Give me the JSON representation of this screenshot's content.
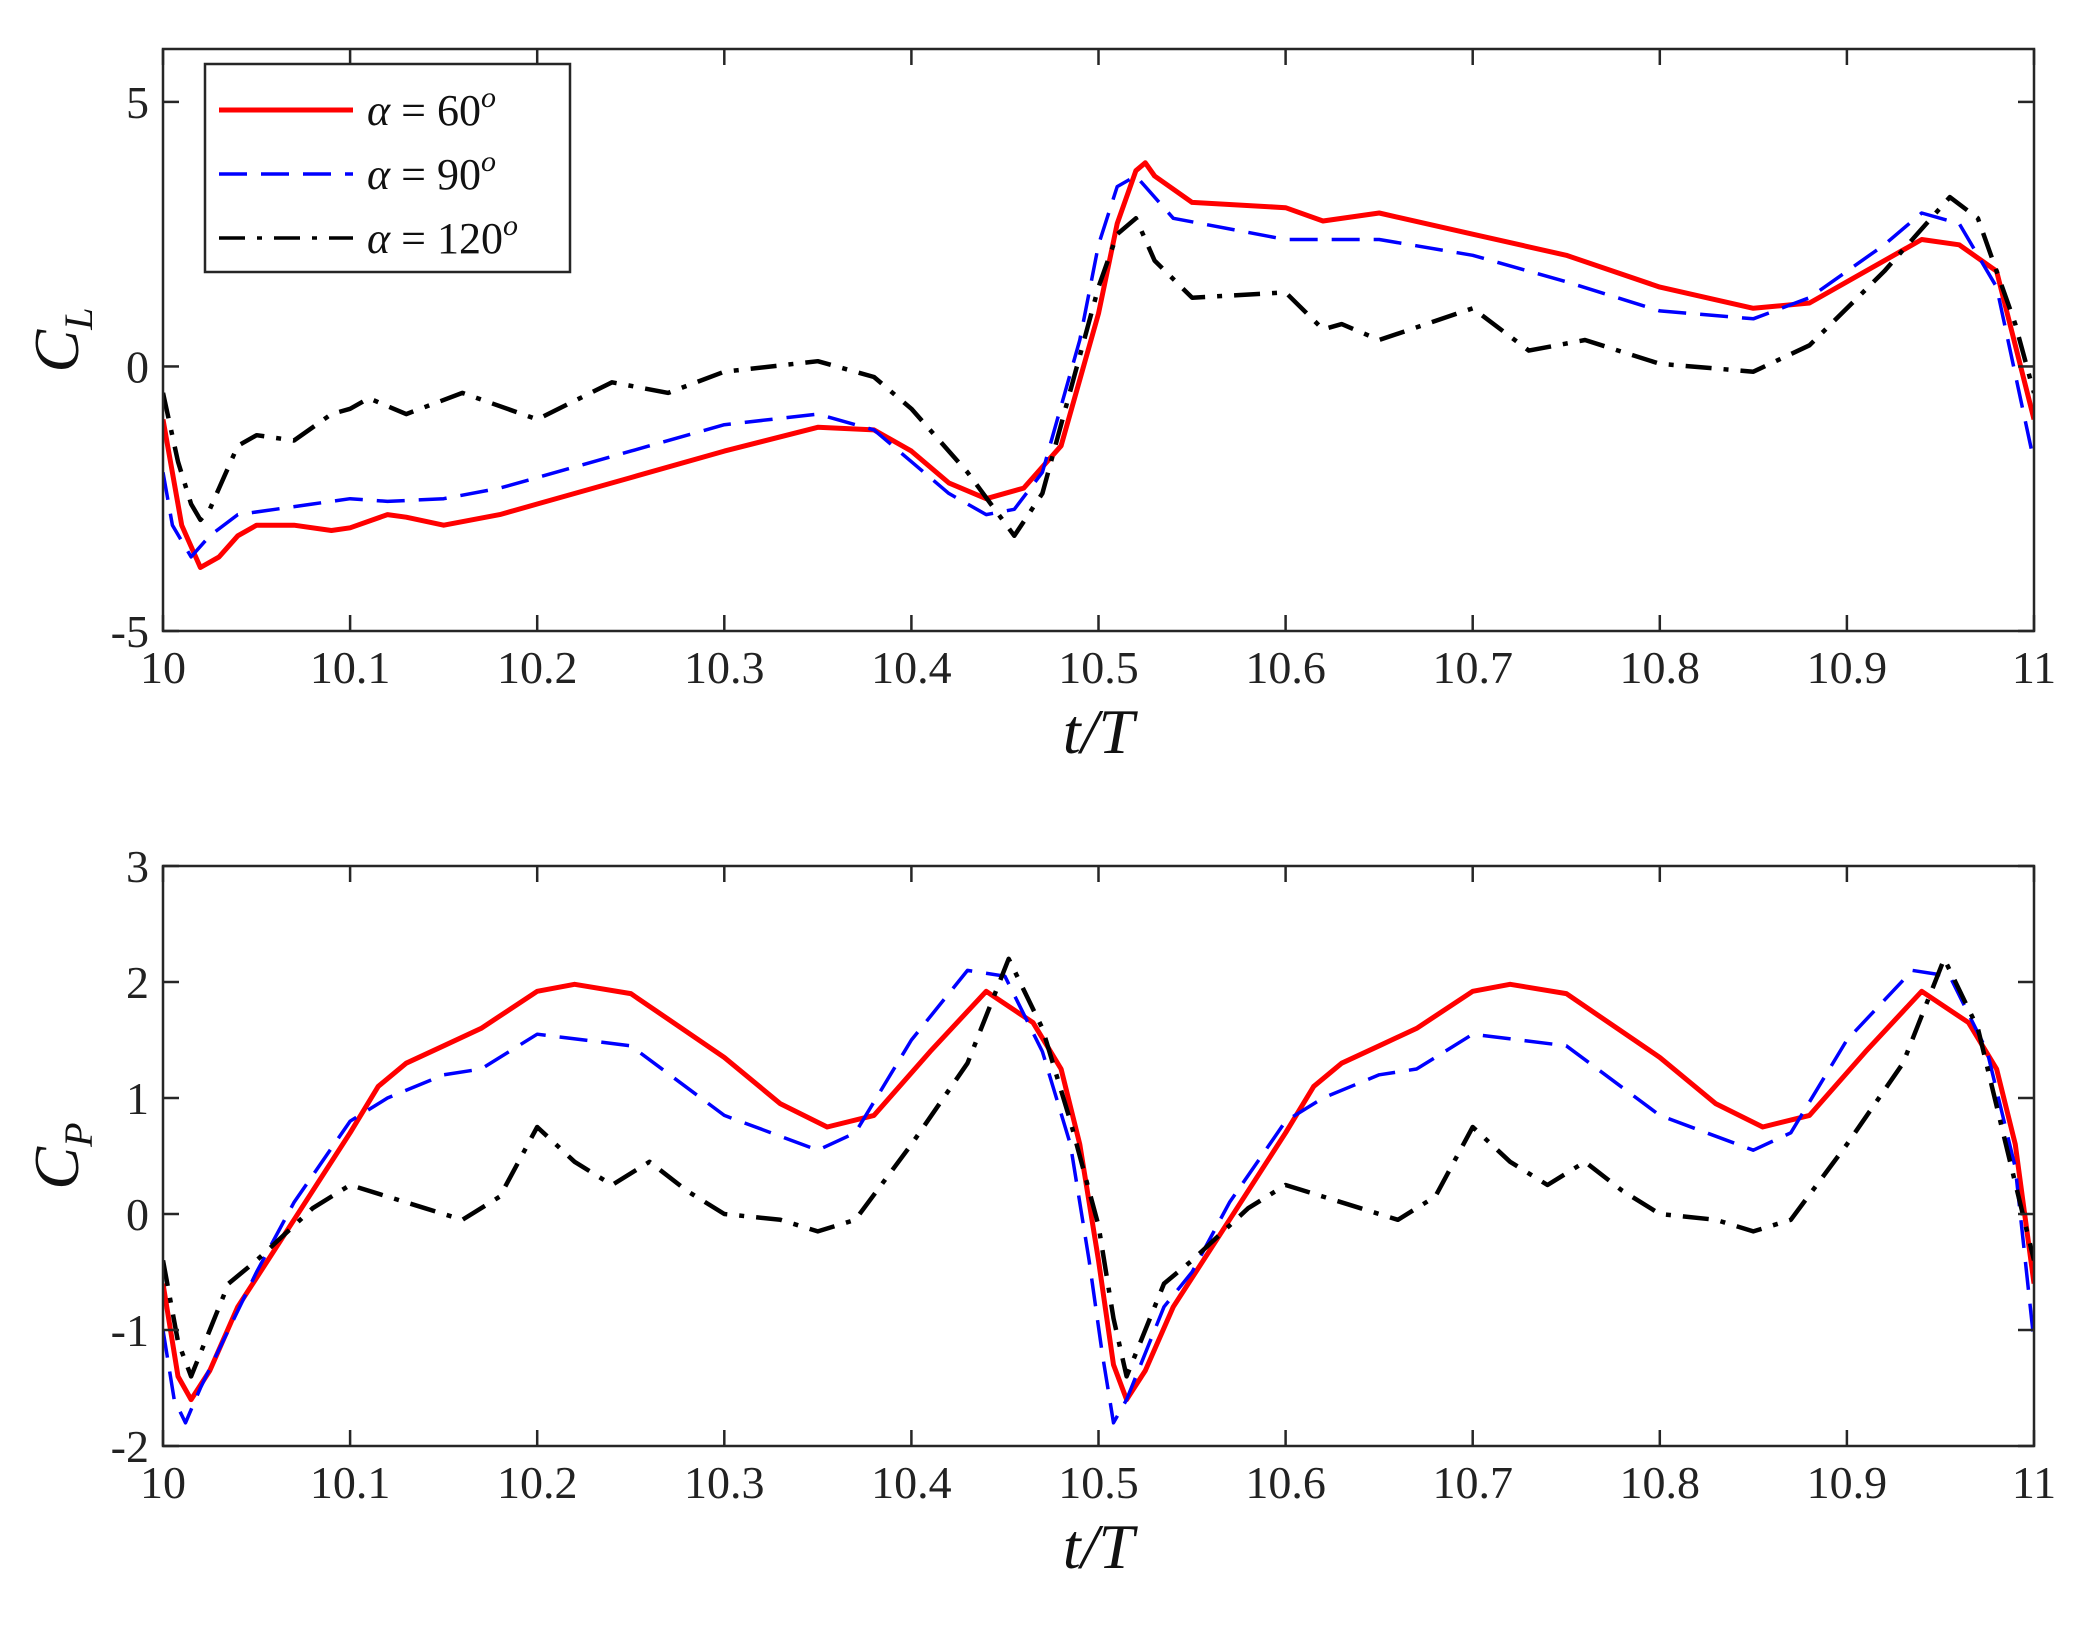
{
  "chart_data": [
    {
      "type": "line",
      "xlabel": "t/T",
      "ylabel": {
        "base": "C",
        "sub": "L"
      },
      "xlim": [
        10,
        11
      ],
      "ylim": [
        -5,
        6
      ],
      "xticks": [
        10,
        10.1,
        10.2,
        10.3,
        10.4,
        10.5,
        10.6,
        10.7,
        10.8,
        10.9,
        11
      ],
      "xtick_labels": [
        "10",
        "10.1",
        "10.2",
        "10.3",
        "10.4",
        "10.5",
        "10.6",
        "10.7",
        "10.8",
        "10.9",
        "11"
      ],
      "yticks": [
        -5,
        0,
        5
      ],
      "ytick_labels": [
        "-5",
        "0",
        "5"
      ],
      "grid": false,
      "legend": {
        "placement": "top-left",
        "entries": [
          {
            "lhs": "α",
            "eq": " = ",
            "num": "60",
            "sup": "o"
          },
          {
            "lhs": "α",
            "eq": " = ",
            "num": "90",
            "sup": "o"
          },
          {
            "lhs": "α",
            "eq": " = ",
            "num": "120",
            "sup": "o"
          }
        ]
      },
      "series": [
        {
          "name": "α = 60°",
          "color": "#ff0000",
          "dash": "solid",
          "x": [
            10,
            10.01,
            10.02,
            10.03,
            10.04,
            10.05,
            10.07,
            10.09,
            10.1,
            10.12,
            10.13,
            10.15,
            10.18,
            10.2,
            10.25,
            10.3,
            10.35,
            10.38,
            10.4,
            10.42,
            10.44,
            10.46,
            10.48,
            10.5,
            10.51,
            10.52,
            10.525,
            10.53,
            10.55,
            10.6,
            10.62,
            10.65,
            10.7,
            10.75,
            10.8,
            10.85,
            10.88,
            10.9,
            10.94,
            10.96,
            10.98,
            11
          ],
          "y": [
            -1,
            -3,
            -3.8,
            -3.6,
            -3.2,
            -3.0,
            -3.0,
            -3.1,
            -3.05,
            -2.8,
            -2.85,
            -3.0,
            -2.8,
            -2.6,
            -2.1,
            -1.6,
            -1.15,
            -1.2,
            -1.6,
            -2.2,
            -2.5,
            -2.3,
            -1.5,
            1.0,
            2.7,
            3.7,
            3.85,
            3.6,
            3.1,
            3.0,
            2.75,
            2.9,
            2.5,
            2.1,
            1.5,
            1.1,
            1.2,
            1.6,
            2.4,
            2.3,
            1.8,
            -1.0
          ]
        },
        {
          "name": "α = 90°",
          "color": "#0000ff",
          "dash": "dashed",
          "x": [
            10,
            10.005,
            10.015,
            10.025,
            10.04,
            10.06,
            10.08,
            10.1,
            10.12,
            10.15,
            10.18,
            10.2,
            10.25,
            10.3,
            10.35,
            10.38,
            10.4,
            10.42,
            10.44,
            10.455,
            10.47,
            10.49,
            10.5,
            10.51,
            10.52,
            10.54,
            10.6,
            10.65,
            10.7,
            10.75,
            10.8,
            10.85,
            10.88,
            10.92,
            10.94,
            10.96,
            10.98,
            11
          ],
          "y": [
            -2,
            -3.0,
            -3.6,
            -3.2,
            -2.8,
            -2.7,
            -2.6,
            -2.5,
            -2.55,
            -2.5,
            -2.3,
            -2.1,
            -1.6,
            -1.1,
            -0.9,
            -1.2,
            -1.8,
            -2.4,
            -2.8,
            -2.7,
            -2.0,
            0.5,
            2.3,
            3.4,
            3.6,
            2.8,
            2.4,
            2.4,
            2.1,
            1.6,
            1.05,
            0.9,
            1.3,
            2.3,
            2.9,
            2.7,
            1.5,
            -1.8
          ]
        },
        {
          "name": "α = 120°",
          "color": "#000000",
          "dash": "dashdot",
          "x": [
            10,
            10.008,
            10.015,
            10.02,
            10.025,
            10.03,
            10.04,
            10.05,
            10.07,
            10.09,
            10.1,
            10.11,
            10.13,
            10.16,
            10.2,
            10.24,
            10.27,
            10.3,
            10.35,
            10.38,
            10.4,
            10.43,
            10.455,
            10.47,
            10.49,
            10.5,
            10.51,
            10.52,
            10.53,
            10.55,
            10.6,
            10.62,
            10.63,
            10.65,
            10.7,
            10.73,
            10.76,
            10.8,
            10.85,
            10.88,
            10.92,
            10.955,
            10.97,
            10.99,
            11
          ],
          "y": [
            -0.5,
            -1.8,
            -2.6,
            -2.9,
            -2.7,
            -2.3,
            -1.5,
            -1.3,
            -1.4,
            -0.9,
            -0.8,
            -0.6,
            -0.9,
            -0.5,
            -1.0,
            -0.3,
            -0.5,
            -0.1,
            0.1,
            -0.2,
            -0.8,
            -2.0,
            -3.2,
            -2.4,
            0.2,
            1.5,
            2.5,
            2.8,
            2.0,
            1.3,
            1.4,
            0.7,
            0.8,
            0.5,
            1.1,
            0.3,
            0.5,
            0.05,
            -0.1,
            0.4,
            1.8,
            3.2,
            2.8,
            0.8,
            -0.5
          ]
        }
      ]
    },
    {
      "type": "line",
      "xlabel": "t/T",
      "ylabel": {
        "base": "C",
        "sub": "P"
      },
      "xlim": [
        10,
        11
      ],
      "ylim": [
        -2,
        3
      ],
      "xticks": [
        10,
        10.1,
        10.2,
        10.3,
        10.4,
        10.5,
        10.6,
        10.7,
        10.8,
        10.9,
        11
      ],
      "xtick_labels": [
        "10",
        "10.1",
        "10.2",
        "10.3",
        "10.4",
        "10.5",
        "10.6",
        "10.7",
        "10.8",
        "10.9",
        "11"
      ],
      "yticks": [
        -2,
        -1,
        0,
        1,
        2,
        3
      ],
      "ytick_labels": [
        "-2",
        "-1",
        "0",
        "1",
        "2",
        "3"
      ],
      "grid": false,
      "series": [
        {
          "name": "α = 60°",
          "color": "#ff0000",
          "dash": "solid",
          "x": [
            10,
            10.008,
            10.015,
            10.025,
            10.04,
            10.06,
            10.08,
            10.1,
            10.115,
            10.13,
            10.15,
            10.17,
            10.2,
            10.22,
            10.25,
            10.3,
            10.33,
            10.355,
            10.38,
            10.41,
            10.44,
            10.465,
            10.48,
            10.49,
            10.5,
            10.508,
            10.515,
            10.525,
            10.54,
            10.56,
            10.58,
            10.6,
            10.615,
            10.63,
            10.65,
            10.67,
            10.7,
            10.72,
            10.75,
            10.8,
            10.83,
            10.855,
            10.88,
            10.91,
            10.94,
            10.965,
            10.98,
            10.99,
            11
          ],
          "y": [
            -0.6,
            -1.4,
            -1.6,
            -1.35,
            -0.8,
            -0.3,
            0.2,
            0.7,
            1.1,
            1.3,
            1.45,
            1.6,
            1.92,
            1.98,
            1.9,
            1.35,
            0.95,
            0.75,
            0.85,
            1.4,
            1.92,
            1.65,
            1.25,
            0.6,
            -0.4,
            -1.3,
            -1.6,
            -1.35,
            -0.8,
            -0.3,
            0.2,
            0.7,
            1.1,
            1.3,
            1.45,
            1.6,
            1.92,
            1.98,
            1.9,
            1.35,
            0.95,
            0.75,
            0.85,
            1.4,
            1.92,
            1.65,
            1.25,
            0.6,
            -0.6
          ]
        },
        {
          "name": "α = 90°",
          "color": "#0000ff",
          "dash": "dashed",
          "x": [
            10,
            10.006,
            10.012,
            10.02,
            10.035,
            10.05,
            10.07,
            10.1,
            10.12,
            10.15,
            10.17,
            10.2,
            10.25,
            10.3,
            10.35,
            10.37,
            10.4,
            10.43,
            10.45,
            10.47,
            10.485,
            10.495,
            10.502,
            10.508,
            10.515,
            10.525,
            10.535,
            10.55,
            10.57,
            10.6,
            10.62,
            10.65,
            10.67,
            10.7,
            10.75,
            10.8,
            10.85,
            10.87,
            10.9,
            10.935,
            10.955,
            10.975,
            10.99,
            11
          ],
          "y": [
            -1.0,
            -1.6,
            -1.8,
            -1.5,
            -1.0,
            -0.5,
            0.1,
            0.8,
            1.0,
            1.2,
            1.25,
            1.55,
            1.45,
            0.85,
            0.55,
            0.7,
            1.5,
            2.1,
            2.05,
            1.4,
            0.6,
            -0.4,
            -1.2,
            -1.8,
            -1.6,
            -1.2,
            -0.8,
            -0.5,
            0.1,
            0.8,
            1.0,
            1.2,
            1.25,
            1.55,
            1.45,
            0.85,
            0.55,
            0.7,
            1.5,
            2.1,
            2.05,
            1.4,
            0.4,
            -1.1
          ]
        },
        {
          "name": "α = 120°",
          "color": "#000000",
          "dash": "dashdot",
          "x": [
            10,
            10.008,
            10.015,
            10.025,
            10.035,
            10.05,
            10.06,
            10.08,
            10.1,
            10.12,
            10.14,
            10.16,
            10.18,
            10.2,
            10.22,
            10.24,
            10.26,
            10.28,
            10.3,
            10.33,
            10.35,
            10.37,
            10.4,
            10.43,
            10.452,
            10.47,
            10.485,
            10.5,
            10.508,
            10.515,
            10.525,
            10.535,
            10.55,
            10.56,
            10.58,
            10.6,
            10.62,
            10.64,
            10.66,
            10.68,
            10.7,
            10.72,
            10.74,
            10.76,
            10.78,
            10.8,
            10.83,
            10.85,
            10.87,
            10.9,
            10.93,
            10.952,
            10.97,
            10.985,
            11
          ],
          "y": [
            -0.4,
            -1.1,
            -1.4,
            -1.0,
            -0.6,
            -0.4,
            -0.25,
            0.05,
            0.25,
            0.15,
            0.05,
            -0.05,
            0.15,
            0.75,
            0.45,
            0.25,
            0.45,
            0.2,
            0.0,
            -0.05,
            -0.15,
            -0.05,
            0.6,
            1.3,
            2.2,
            1.6,
            0.8,
            -0.1,
            -0.9,
            -1.4,
            -1.0,
            -0.6,
            -0.4,
            -0.25,
            0.05,
            0.25,
            0.15,
            0.05,
            -0.05,
            0.15,
            0.75,
            0.45,
            0.25,
            0.45,
            0.2,
            0.0,
            -0.05,
            -0.15,
            -0.05,
            0.6,
            1.3,
            2.2,
            1.6,
            0.6,
            -0.4
          ]
        }
      ]
    }
  ]
}
